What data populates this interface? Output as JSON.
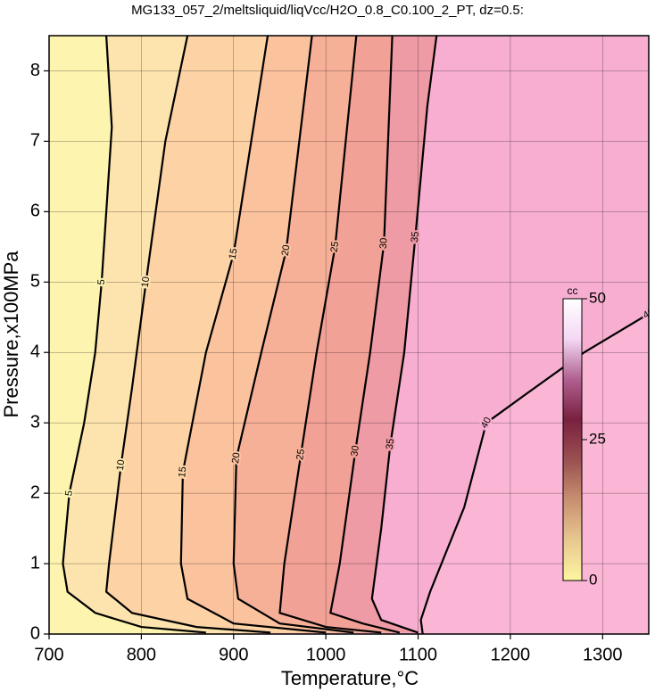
{
  "chart_data": {
    "type": "contour",
    "title": "MG133_057_2/meltsliquid/liqVcc/H2O_0.8_C0.100_2_PT, dz=0.5:",
    "x_label": "Temperature,°C",
    "y_label": "Pressure,x100MPa",
    "xlim": [
      700,
      1350
    ],
    "ylim": [
      0,
      8.5
    ],
    "xticks": [
      700,
      800,
      900,
      1000,
      1100,
      1200,
      1300
    ],
    "yticks": [
      0,
      1,
      2,
      3,
      4,
      5,
      6,
      7,
      8
    ],
    "grid": true,
    "background": "#fbb6d6",
    "series": [
      {
        "name": "5",
        "fill": "#fdf4b0",
        "x": [
          870,
          800,
          750,
          720,
          715,
          722,
          738,
          750,
          757,
          762,
          768,
          762
        ],
        "y": [
          0.02,
          0.1,
          0.3,
          0.6,
          1,
          2,
          3,
          4,
          5,
          6,
          7.2,
          8.5
        ]
      },
      {
        "name": "10",
        "fill": "#fde4ae",
        "x": [
          940,
          860,
          790,
          762,
          765,
          778,
          790,
          805,
          826,
          850
        ],
        "y": [
          0.02,
          0.1,
          0.3,
          0.6,
          1,
          2.4,
          3.5,
          5,
          7,
          8.5
        ]
      },
      {
        "name": "15",
        "fill": "#fdd3a6",
        "x": [
          1000,
          900,
          850,
          843,
          845,
          870,
          900,
          937
        ],
        "y": [
          0.02,
          0.15,
          0.5,
          1,
          2.3,
          4,
          5.4,
          8.5
        ]
      },
      {
        "name": "20",
        "fill": "#fbc29e",
        "x": [
          1030,
          950,
          905,
          900,
          903,
          930,
          957,
          985
        ],
        "y": [
          0.02,
          0.15,
          0.5,
          1,
          2.5,
          4,
          5.45,
          8.5
        ]
      },
      {
        "name": "25",
        "fill": "#f7b098",
        "x": [
          1060,
          1000,
          950,
          955,
          973,
          990,
          1010,
          1033
        ],
        "y": [
          0.02,
          0.1,
          0.3,
          1,
          2.55,
          4,
          5.5,
          8.5
        ]
      },
      {
        "name": "30",
        "fill": "#f2a196",
        "x": [
          1080,
          1040,
          1005,
          1015,
          1032,
          1048,
          1063,
          1072
        ],
        "y": [
          0.02,
          0.15,
          0.3,
          1,
          2.6,
          4,
          5.55,
          8.5
        ]
      },
      {
        "name": "35",
        "fill": "#ee9ba6",
        "x": [
          1100,
          1060,
          1050,
          1060,
          1070,
          1085,
          1097,
          1110,
          1120
        ],
        "y": [
          0.02,
          0.2,
          0.5,
          1.5,
          2.7,
          4,
          5.64,
          7.5,
          8.5
        ]
      },
      {
        "name": "40",
        "fill": "#f7aed0",
        "x": [
          1105,
          1103,
          1113,
          1150,
          1174,
          1216,
          1280,
          1350
        ],
        "y": [
          0,
          0.2,
          0.6,
          1.8,
          3,
          3.4,
          4.0,
          4.55
        ]
      }
    ],
    "colorbar": {
      "label": "cc",
      "lim": [
        0,
        50
      ],
      "ticks": [
        0,
        25,
        50
      ],
      "colors": [
        "#fdf6a0",
        "#e8c890",
        "#c89070",
        "#9a5050",
        "#7a2040",
        "#b06090",
        "#f4d8f4",
        "#ffffff"
      ]
    }
  }
}
